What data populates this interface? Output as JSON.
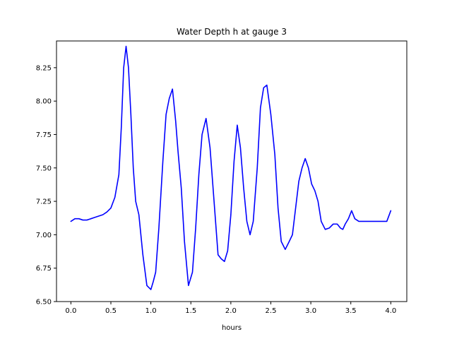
{
  "chart_data": {
    "type": "line",
    "title": "Water Depth h at gauge 3",
    "xlabel": "hours",
    "ylabel": "",
    "xlim": [
      -0.18,
      4.2
    ],
    "ylim": [
      6.5,
      8.45
    ],
    "xticks": [
      0.0,
      0.5,
      1.0,
      1.5,
      2.0,
      2.5,
      3.0,
      3.5,
      4.0
    ],
    "xtick_labels": [
      "0.0",
      "0.5",
      "1.0",
      "1.5",
      "2.0",
      "2.5",
      "3.0",
      "3.5",
      "4.0"
    ],
    "yticks": [
      6.5,
      6.75,
      7.0,
      7.25,
      7.5,
      7.75,
      8.0,
      8.25
    ],
    "ytick_labels": [
      "6.50",
      "6.75",
      "7.00",
      "7.25",
      "7.50",
      "7.75",
      "8.00",
      "8.25"
    ],
    "grid": false,
    "series": [
      {
        "color": "#0000ff",
        "x": [
          0.0,
          0.05,
          0.1,
          0.15,
          0.2,
          0.25,
          0.3,
          0.35,
          0.4,
          0.45,
          0.5,
          0.55,
          0.6,
          0.63,
          0.66,
          0.69,
          0.72,
          0.75,
          0.78,
          0.81,
          0.85,
          0.9,
          0.95,
          1.0,
          1.03,
          1.06,
          1.1,
          1.15,
          1.19,
          1.23,
          1.27,
          1.31,
          1.34,
          1.38,
          1.42,
          1.47,
          1.52,
          1.56,
          1.6,
          1.64,
          1.69,
          1.74,
          1.79,
          1.84,
          1.88,
          1.92,
          1.96,
          2.0,
          2.04,
          2.08,
          2.12,
          2.16,
          2.2,
          2.24,
          2.28,
          2.33,
          2.37,
          2.41,
          2.45,
          2.5,
          2.55,
          2.59,
          2.63,
          2.68,
          2.73,
          2.77,
          2.81,
          2.85,
          2.89,
          2.93,
          2.97,
          3.01,
          3.05,
          3.09,
          3.13,
          3.18,
          3.23,
          3.28,
          3.33,
          3.37,
          3.4,
          3.43,
          3.47,
          3.51,
          3.55,
          3.6,
          3.65,
          3.7,
          3.75,
          3.8,
          3.85,
          3.9,
          3.95,
          4.0
        ],
        "y": [
          7.1,
          7.12,
          7.12,
          7.11,
          7.11,
          7.12,
          7.13,
          7.14,
          7.15,
          7.17,
          7.2,
          7.28,
          7.45,
          7.8,
          8.25,
          8.41,
          8.25,
          7.9,
          7.5,
          7.25,
          7.15,
          6.85,
          6.62,
          6.59,
          6.65,
          6.72,
          7.05,
          7.55,
          7.9,
          8.02,
          8.09,
          7.85,
          7.62,
          7.35,
          6.95,
          6.62,
          6.72,
          7.05,
          7.45,
          7.75,
          7.87,
          7.65,
          7.25,
          6.85,
          6.82,
          6.8,
          6.88,
          7.15,
          7.55,
          7.82,
          7.65,
          7.35,
          7.1,
          7.0,
          7.1,
          7.5,
          7.95,
          8.1,
          8.12,
          7.9,
          7.6,
          7.2,
          6.95,
          6.89,
          6.95,
          7.0,
          7.2,
          7.4,
          7.5,
          7.57,
          7.5,
          7.38,
          7.33,
          7.25,
          7.1,
          7.04,
          7.05,
          7.08,
          7.08,
          7.05,
          7.04,
          7.08,
          7.12,
          7.18,
          7.12,
          7.1,
          7.1,
          7.1,
          7.1,
          7.1,
          7.1,
          7.1,
          7.1,
          7.18
        ]
      }
    ]
  }
}
